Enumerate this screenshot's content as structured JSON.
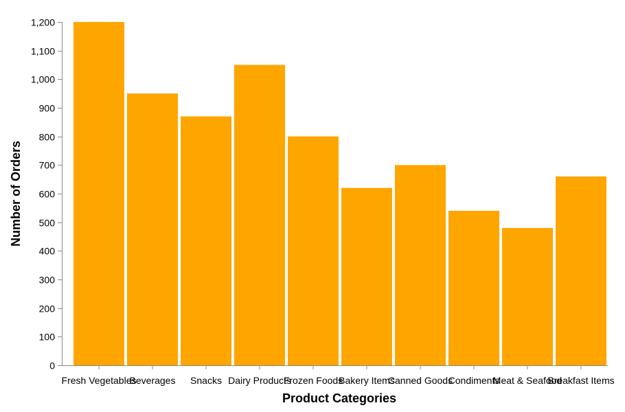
{
  "chart_data": {
    "type": "bar",
    "title": "",
    "xlabel": "Product Categories",
    "ylabel": "Number of Orders",
    "categories": [
      "Fresh Vegetables",
      "Beverages",
      "Snacks",
      "Dairy Products",
      "Frozen Foods",
      "Bakery Items",
      "Canned Goods",
      "Condiments",
      "Meat & Seafood",
      "Breakfast Items"
    ],
    "values": [
      1200,
      950,
      870,
      1050,
      800,
      620,
      700,
      540,
      480,
      660
    ],
    "ylim": [
      0,
      1200
    ],
    "yticks": [
      0,
      100,
      200,
      300,
      400,
      500,
      600,
      700,
      800,
      900,
      1000,
      1100,
      1200
    ],
    "ytick_labels": [
      "0",
      "100",
      "200",
      "300",
      "400",
      "500",
      "600",
      "700",
      "800",
      "900",
      "1,000",
      "1,100",
      "1,200"
    ],
    "bar_color": "#FFA500",
    "grid": false,
    "legend": "none"
  }
}
